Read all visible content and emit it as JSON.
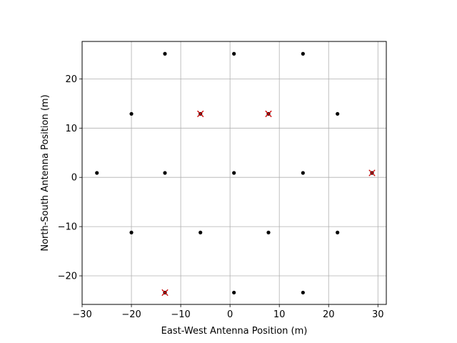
{
  "chart_data": {
    "type": "scatter",
    "xlabel": "East-West Antenna Position (m)",
    "ylabel": "North-South Antenna Position (m)",
    "xlim": [
      -30,
      31.7
    ],
    "ylim": [
      -25.8,
      27.6
    ],
    "xticks": [
      -30,
      -20,
      -10,
      0,
      10,
      20,
      30
    ],
    "yticks": [
      -20,
      -10,
      0,
      10,
      20
    ],
    "xtick_labels": [
      "−30",
      "−20",
      "−10",
      "0",
      "10",
      "20",
      "30"
    ],
    "ytick_labels": [
      "−20",
      "−10",
      "0",
      "10",
      "20"
    ],
    "grid": true,
    "series": [
      {
        "marker": "dot",
        "color": "#000000",
        "points": [
          [
            -13.2,
            25.1
          ],
          [
            0.8,
            25.1
          ],
          [
            14.8,
            25.1
          ],
          [
            -20.0,
            12.9
          ],
          [
            -6.0,
            12.9
          ],
          [
            7.8,
            12.9
          ],
          [
            21.8,
            12.9
          ],
          [
            -27.0,
            0.9
          ],
          [
            -13.2,
            0.9
          ],
          [
            0.8,
            0.9
          ],
          [
            14.8,
            0.9
          ],
          [
            28.8,
            0.9
          ],
          [
            -20.0,
            -11.2
          ],
          [
            -6.0,
            -11.2
          ],
          [
            7.8,
            -11.2
          ],
          [
            21.8,
            -11.2
          ],
          [
            -13.2,
            -23.4
          ],
          [
            0.8,
            -23.4
          ],
          [
            14.8,
            -23.4
          ]
        ]
      },
      {
        "marker": "x",
        "color": "#cc0000",
        "points": [
          [
            -6.0,
            12.9
          ],
          [
            7.8,
            12.9
          ],
          [
            28.8,
            0.9
          ],
          [
            -13.2,
            -23.4
          ]
        ]
      }
    ]
  }
}
